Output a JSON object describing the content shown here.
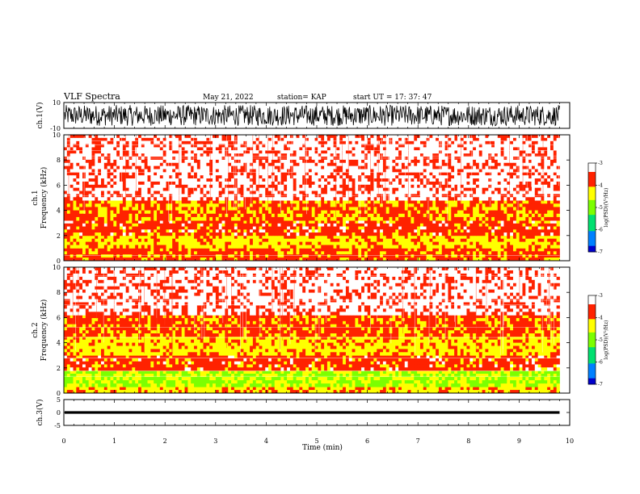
{
  "header": {
    "title": "VLF Spectra",
    "date": "May 21, 2022",
    "station": "station= KAP",
    "start_ut": "start  UT  =   17: 37: 47"
  },
  "colors": {
    "background": "#ffffff",
    "axis": "#000000",
    "colormap": [
      "#0000cc",
      "#0080ff",
      "#00e070",
      "#7cff00",
      "#ffff00",
      "#ff2200",
      "#ffffff"
    ]
  },
  "chart_data": [
    {
      "panel": "ch1-waveform",
      "type": "line",
      "ylabel": "ch.1(V)",
      "ylim": [
        -10,
        10
      ],
      "yticks": [
        "10",
        "-10"
      ],
      "xlim": [
        0,
        10
      ],
      "signal_extent_min": 9.8,
      "description_values": {
        "typical_min": -8,
        "typical_max": 8
      }
    },
    {
      "panel": "ch1-spectrogram",
      "type": "heatmap",
      "ylabel_line1": "ch.1",
      "ylabel_line2": "Frequency (kHz)",
      "ylim": [
        0,
        10
      ],
      "yticks": [
        "0",
        "2",
        "4",
        "6",
        "8",
        "10"
      ],
      "xlim": [
        0,
        10
      ],
      "colorbar_label": "log(PSD)(V²/Hz)",
      "colorbar_range": [
        -7,
        -3
      ],
      "colorbar_ticks": [
        "-3",
        "-4",
        "-5",
        "-6",
        "-7"
      ],
      "bands": [
        {
          "f": [
            0,
            1.0
          ],
          "level": -3.8
        },
        {
          "f": [
            1.0,
            2.0
          ],
          "level": -4.2
        },
        {
          "f": [
            2.0,
            3.2
          ],
          "level": -3.7
        },
        {
          "f": [
            3.2,
            4.8
          ],
          "level": -3.9
        },
        {
          "f": [
            4.8,
            10
          ],
          "level": -3.2
        }
      ]
    },
    {
      "panel": "ch2-spectrogram",
      "type": "heatmap",
      "ylabel_line1": "ch.2",
      "ylabel_line2": "Frequency (kHz)",
      "ylim": [
        0,
        10
      ],
      "yticks": [
        "0",
        "2",
        "4",
        "6",
        "8",
        "10"
      ],
      "xlim": [
        0,
        10
      ],
      "colorbar_label": "log(PSD)(V²/Hz)",
      "colorbar_range": [
        -7,
        -3
      ],
      "colorbar_ticks": [
        "-3",
        "-4",
        "-5",
        "-6",
        "-7"
      ],
      "bands": [
        {
          "f": [
            0,
            0.5
          ],
          "level": -4.2
        },
        {
          "f": [
            0.5,
            1.8
          ],
          "level": -4.7
        },
        {
          "f": [
            1.8,
            3.0
          ],
          "level": -3.7
        },
        {
          "f": [
            3.0,
            4.5
          ],
          "level": -4.2
        },
        {
          "f": [
            4.5,
            6.2
          ],
          "level": -3.8
        },
        {
          "f": [
            6.2,
            10
          ],
          "level": -3.2
        }
      ]
    },
    {
      "panel": "ch3-waveform",
      "type": "line",
      "ylabel": "ch.3(V)",
      "ylim": [
        -5,
        5
      ],
      "yticks": [
        "5",
        "0",
        "-5"
      ],
      "xlim": [
        0,
        10
      ],
      "signal_extent_min": 9.8,
      "description_values": {
        "typical_min": -0.5,
        "typical_max": 0.5
      }
    }
  ],
  "xaxis": {
    "label": "Time (min)",
    "ticks": [
      "0",
      "1",
      "2",
      "3",
      "4",
      "5",
      "6",
      "7",
      "8",
      "9",
      "10"
    ],
    "range": [
      0,
      10
    ]
  }
}
